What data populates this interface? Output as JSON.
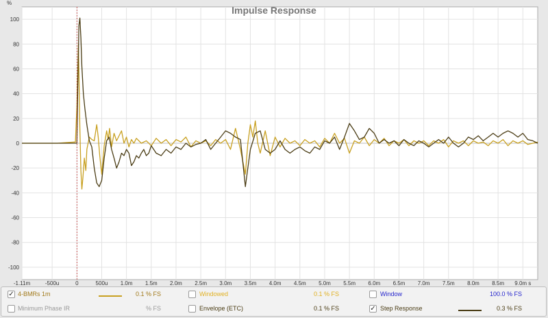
{
  "chart_data": {
    "type": "line",
    "title": "Impulse Response",
    "ylabel": "%",
    "ylim": [
      -110,
      110
    ],
    "yticks": [
      100,
      80,
      60,
      40,
      20,
      0,
      -20,
      -40,
      -60,
      -80,
      -100
    ],
    "xlim": [
      -0.00111,
      0.0093
    ],
    "xticks": [
      {
        "v": -0.00111,
        "label": "-1.11m"
      },
      {
        "v": -0.0005,
        "label": "-500u"
      },
      {
        "v": 0,
        "label": "0"
      },
      {
        "v": 0.0005,
        "label": "500u"
      },
      {
        "v": 0.001,
        "label": "1.0m"
      },
      {
        "v": 0.0015,
        "label": "1.5m"
      },
      {
        "v": 0.002,
        "label": "2.0m"
      },
      {
        "v": 0.0025,
        "label": "2.5m"
      },
      {
        "v": 0.003,
        "label": "3.0m"
      },
      {
        "v": 0.0035,
        "label": "3.5m"
      },
      {
        "v": 0.004,
        "label": "4.0m"
      },
      {
        "v": 0.0045,
        "label": "4.5m"
      },
      {
        "v": 0.005,
        "label": "5.0m"
      },
      {
        "v": 0.0055,
        "label": "5.5m"
      },
      {
        "v": 0.006,
        "label": "6.0m"
      },
      {
        "v": 0.0065,
        "label": "6.5m"
      },
      {
        "v": 0.007,
        "label": "7.0m"
      },
      {
        "v": 0.0075,
        "label": "7.5m"
      },
      {
        "v": 0.008,
        "label": "8.0m"
      },
      {
        "v": 0.0085,
        "label": "8.5m"
      },
      {
        "v": 0.009,
        "label": "9.0m s"
      }
    ],
    "marker_x": 0,
    "grid": true,
    "series": [
      {
        "name": "4-BMRs 1m",
        "color": "#c8a020",
        "points": [
          [
            -0.00111,
            0
          ],
          [
            -0.0004,
            0
          ],
          [
            -3e-05,
            1
          ],
          [
            0,
            30
          ],
          [
            3e-05,
            80
          ],
          [
            6e-05,
            12
          ],
          [
            8e-05,
            -22
          ],
          [
            0.0001,
            -37
          ],
          [
            0.00012,
            -28
          ],
          [
            0.00015,
            -12
          ],
          [
            0.00018,
            -22
          ],
          [
            0.0002,
            -5
          ],
          [
            0.00025,
            5
          ],
          [
            0.0003,
            3
          ],
          [
            0.00035,
            2
          ],
          [
            0.0004,
            15
          ],
          [
            0.00043,
            5
          ],
          [
            0.00046,
            -10
          ],
          [
            0.0005,
            -25
          ],
          [
            0.00055,
            -2
          ],
          [
            0.0006,
            10
          ],
          [
            0.00063,
            3
          ],
          [
            0.00066,
            12
          ],
          [
            0.0007,
            -3
          ],
          [
            0.00075,
            8
          ],
          [
            0.0008,
            2
          ],
          [
            0.00085,
            6
          ],
          [
            0.0009,
            10
          ],
          [
            0.00095,
            0
          ],
          [
            0.001,
            5
          ],
          [
            0.00105,
            -3
          ],
          [
            0.0011,
            3
          ],
          [
            0.00115,
            0
          ],
          [
            0.0012,
            4
          ],
          [
            0.0013,
            0
          ],
          [
            0.0014,
            2
          ],
          [
            0.0015,
            -2
          ],
          [
            0.0016,
            4
          ],
          [
            0.0017,
            0
          ],
          [
            0.0018,
            3
          ],
          [
            0.0019,
            -2
          ],
          [
            0.002,
            3
          ],
          [
            0.0021,
            1
          ],
          [
            0.0022,
            5
          ],
          [
            0.0023,
            -3
          ],
          [
            0.0024,
            2
          ],
          [
            0.0025,
            0
          ],
          [
            0.0026,
            2
          ],
          [
            0.0027,
            -2
          ],
          [
            0.0028,
            3
          ],
          [
            0.0029,
            0
          ],
          [
            0.003,
            3
          ],
          [
            0.0031,
            -5
          ],
          [
            0.0032,
            12
          ],
          [
            0.0033,
            -5
          ],
          [
            0.0034,
            -25
          ],
          [
            0.00345,
            0
          ],
          [
            0.0035,
            15
          ],
          [
            0.00355,
            5
          ],
          [
            0.0036,
            18
          ],
          [
            0.00365,
            0
          ],
          [
            0.0037,
            -8
          ],
          [
            0.0038,
            10
          ],
          [
            0.0039,
            -10
          ],
          [
            0.004,
            5
          ],
          [
            0.0041,
            -3
          ],
          [
            0.0042,
            4
          ],
          [
            0.0043,
            0
          ],
          [
            0.0044,
            2
          ],
          [
            0.0045,
            -2
          ],
          [
            0.0046,
            3
          ],
          [
            0.0047,
            0
          ],
          [
            0.0048,
            2
          ],
          [
            0.0049,
            -3
          ],
          [
            0.005,
            4
          ],
          [
            0.0051,
            0
          ],
          [
            0.0052,
            8
          ],
          [
            0.0053,
            0
          ],
          [
            0.0054,
            4
          ],
          [
            0.0055,
            -8
          ],
          [
            0.0056,
            2
          ],
          [
            0.0057,
            0
          ],
          [
            0.0058,
            5
          ],
          [
            0.0059,
            -2
          ],
          [
            0.006,
            3
          ],
          [
            0.0061,
            0
          ],
          [
            0.0062,
            4
          ],
          [
            0.0063,
            -2
          ],
          [
            0.0064,
            2
          ],
          [
            0.0065,
            0
          ],
          [
            0.0066,
            3
          ],
          [
            0.0067,
            -2
          ],
          [
            0.0068,
            2
          ],
          [
            0.0069,
            0
          ],
          [
            0.007,
            2
          ],
          [
            0.0071,
            -2
          ],
          [
            0.0072,
            2
          ],
          [
            0.0073,
            0
          ],
          [
            0.0074,
            3
          ],
          [
            0.0075,
            -3
          ],
          [
            0.0076,
            2
          ],
          [
            0.0077,
            0
          ],
          [
            0.0078,
            2
          ],
          [
            0.0079,
            -2
          ],
          [
            0.008,
            2
          ],
          [
            0.0081,
            0
          ],
          [
            0.0082,
            1
          ],
          [
            0.0083,
            -2
          ],
          [
            0.0084,
            2
          ],
          [
            0.0085,
            0
          ],
          [
            0.0086,
            3
          ],
          [
            0.0087,
            -2
          ],
          [
            0.0088,
            2
          ],
          [
            0.0089,
            0
          ],
          [
            0.009,
            2
          ],
          [
            0.0091,
            -1
          ],
          [
            0.0093,
            1
          ]
        ]
      },
      {
        "name": "Step Response",
        "color": "#4a3c14",
        "points": [
          [
            -0.00111,
            0
          ],
          [
            -0.0003,
            0
          ],
          [
            0,
            0
          ],
          [
            2e-05,
            50
          ],
          [
            4e-05,
            95
          ],
          [
            6e-05,
            101
          ],
          [
            8e-05,
            85
          ],
          [
            0.0001,
            62
          ],
          [
            0.00013,
            40
          ],
          [
            0.00016,
            28
          ],
          [
            0.0002,
            15
          ],
          [
            0.00025,
            2
          ],
          [
            0.0003,
            -3
          ],
          [
            0.00035,
            -20
          ],
          [
            0.0004,
            -32
          ],
          [
            0.00045,
            -35
          ],
          [
            0.0005,
            -30
          ],
          [
            0.00055,
            -12
          ],
          [
            0.0006,
            2
          ],
          [
            0.00065,
            5
          ],
          [
            0.0007,
            -5
          ],
          [
            0.00075,
            -12
          ],
          [
            0.0008,
            -20
          ],
          [
            0.00085,
            -15
          ],
          [
            0.0009,
            -8
          ],
          [
            0.00095,
            -10
          ],
          [
            0.001,
            -5
          ],
          [
            0.00105,
            -8
          ],
          [
            0.0011,
            -18
          ],
          [
            0.00115,
            -15
          ],
          [
            0.0012,
            -10
          ],
          [
            0.00125,
            -12
          ],
          [
            0.0013,
            -8
          ],
          [
            0.00135,
            -5
          ],
          [
            0.0014,
            -10
          ],
          [
            0.00145,
            -8
          ],
          [
            0.0015,
            -2
          ],
          [
            0.00155,
            -5
          ],
          [
            0.0016,
            -8
          ],
          [
            0.0017,
            -10
          ],
          [
            0.0018,
            -5
          ],
          [
            0.0019,
            -8
          ],
          [
            0.002,
            -3
          ],
          [
            0.0021,
            -5
          ],
          [
            0.0022,
            0
          ],
          [
            0.0023,
            -3
          ],
          [
            0.0024,
            -1
          ],
          [
            0.0025,
            0
          ],
          [
            0.0026,
            3
          ],
          [
            0.0027,
            -5
          ],
          [
            0.0028,
            0
          ],
          [
            0.0029,
            5
          ],
          [
            0.003,
            10
          ],
          [
            0.0031,
            8
          ],
          [
            0.0032,
            5
          ],
          [
            0.0033,
            3
          ],
          [
            0.0034,
            -35
          ],
          [
            0.00345,
            -20
          ],
          [
            0.0035,
            -5
          ],
          [
            0.0036,
            8
          ],
          [
            0.0037,
            10
          ],
          [
            0.0038,
            -5
          ],
          [
            0.0039,
            -8
          ],
          [
            0.004,
            -5
          ],
          [
            0.0041,
            2
          ],
          [
            0.0042,
            -5
          ],
          [
            0.0043,
            -8
          ],
          [
            0.0044,
            -5
          ],
          [
            0.0045,
            -3
          ],
          [
            0.0046,
            -6
          ],
          [
            0.0047,
            -8
          ],
          [
            0.0048,
            -3
          ],
          [
            0.0049,
            -5
          ],
          [
            0.005,
            2
          ],
          [
            0.0051,
            0
          ],
          [
            0.0052,
            5
          ],
          [
            0.0053,
            -5
          ],
          [
            0.0054,
            5
          ],
          [
            0.0055,
            16
          ],
          [
            0.0056,
            10
          ],
          [
            0.0057,
            3
          ],
          [
            0.0058,
            5
          ],
          [
            0.0059,
            12
          ],
          [
            0.006,
            8
          ],
          [
            0.0061,
            0
          ],
          [
            0.0062,
            3
          ],
          [
            0.0063,
            0
          ],
          [
            0.0064,
            2
          ],
          [
            0.0065,
            -2
          ],
          [
            0.0066,
            3
          ],
          [
            0.0067,
            0
          ],
          [
            0.0068,
            -2
          ],
          [
            0.0069,
            2
          ],
          [
            0.007,
            0
          ],
          [
            0.0071,
            -3
          ],
          [
            0.0072,
            0
          ],
          [
            0.0073,
            3
          ],
          [
            0.0074,
            0
          ],
          [
            0.0075,
            5
          ],
          [
            0.0076,
            0
          ],
          [
            0.0077,
            -3
          ],
          [
            0.0078,
            0
          ],
          [
            0.0079,
            5
          ],
          [
            0.008,
            3
          ],
          [
            0.0081,
            6
          ],
          [
            0.0082,
            2
          ],
          [
            0.0083,
            5
          ],
          [
            0.0084,
            8
          ],
          [
            0.0085,
            5
          ],
          [
            0.0086,
            8
          ],
          [
            0.0087,
            10
          ],
          [
            0.0088,
            8
          ],
          [
            0.0089,
            5
          ],
          [
            0.009,
            8
          ],
          [
            0.0091,
            3
          ],
          [
            0.0092,
            2
          ],
          [
            0.0093,
            0
          ]
        ]
      }
    ]
  },
  "legend": {
    "rows": [
      [
        {
          "checked": true,
          "label": "4-BMRs 1m",
          "label_color": "#a07818",
          "swatch": "#c8a020",
          "value": "0.1 % FS",
          "value_color": "#a07818"
        },
        {
          "checked": false,
          "label": "Windowed",
          "label_color": "#e0b020",
          "swatch": null,
          "value": "0.1 % FS",
          "value_color": "#e0b020"
        },
        {
          "checked": false,
          "label": "Window",
          "label_color": "#2222cc",
          "swatch": null,
          "value": "100.0 % FS",
          "value_color": "#2222cc"
        }
      ],
      [
        {
          "checked": false,
          "label": "Minimum Phase IR",
          "label_color": "#999999",
          "swatch": null,
          "value": "% FS",
          "value_color": "#999999"
        },
        {
          "checked": false,
          "label": "Envelope (ETC)",
          "label_color": "#4a3c14",
          "swatch": null,
          "value": "0.1 % FS",
          "value_color": "#4a3c14"
        },
        {
          "checked": true,
          "label": "Step Response",
          "label_color": "#4a3c14",
          "swatch": "#4a3c14",
          "value": "0.3 % FS",
          "value_color": "#4a3c14"
        }
      ]
    ]
  }
}
